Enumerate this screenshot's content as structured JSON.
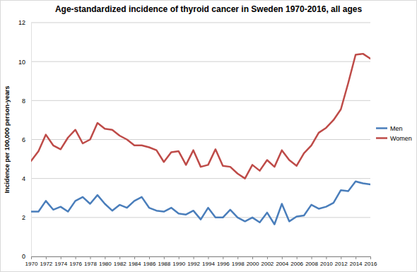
{
  "chart_data": {
    "type": "line",
    "title": "Age-standardized incidence of thyroid cancer in Sweden 1970-2016, all ages",
    "y_label": "Incidence per 100,000 person-years",
    "x": [
      1970,
      1971,
      1972,
      1973,
      1974,
      1975,
      1976,
      1977,
      1978,
      1979,
      1980,
      1981,
      1982,
      1983,
      1984,
      1985,
      1986,
      1987,
      1988,
      1989,
      1990,
      1991,
      1992,
      1993,
      1994,
      1995,
      1996,
      1997,
      1998,
      1999,
      2000,
      2001,
      2002,
      2003,
      2004,
      2005,
      2006,
      2007,
      2008,
      2009,
      2010,
      2011,
      2012,
      2013,
      2014,
      2015,
      2016
    ],
    "series": [
      {
        "name": "Men",
        "color": "#4a7ebb",
        "values": [
          2.3,
          2.3,
          2.85,
          2.4,
          2.55,
          2.3,
          2.85,
          3.05,
          2.7,
          3.15,
          2.7,
          2.35,
          2.65,
          2.5,
          2.85,
          3.05,
          2.5,
          2.35,
          2.3,
          2.5,
          2.2,
          2.15,
          2.35,
          1.9,
          2.5,
          2.0,
          2.0,
          2.4,
          2.0,
          1.8,
          2.0,
          1.75,
          2.25,
          1.65,
          2.7,
          1.8,
          2.05,
          2.1,
          2.65,
          2.45,
          2.55,
          2.75,
          3.4,
          3.35,
          3.85,
          3.75,
          3.7
        ]
      },
      {
        "name": "Women",
        "color": "#be4b48",
        "values": [
          4.9,
          5.4,
          6.25,
          5.7,
          5.5,
          6.1,
          6.5,
          5.8,
          6.0,
          6.85,
          6.55,
          6.5,
          6.2,
          6.0,
          5.7,
          5.7,
          5.6,
          5.45,
          4.85,
          5.35,
          5.4,
          4.7,
          5.45,
          4.6,
          4.7,
          5.5,
          4.65,
          4.6,
          4.25,
          4.0,
          4.7,
          4.4,
          4.95,
          4.6,
          5.45,
          4.95,
          4.65,
          5.3,
          5.7,
          6.35,
          6.6,
          7.0,
          7.55,
          8.9,
          10.35,
          10.4,
          10.15
        ]
      }
    ],
    "xlim": [
      1970,
      2016
    ],
    "xticks": [
      1970,
      1972,
      1974,
      1976,
      1978,
      1980,
      1982,
      1984,
      1986,
      1988,
      1990,
      1992,
      1994,
      1996,
      1998,
      2000,
      2002,
      2004,
      2006,
      2008,
      2010,
      2012,
      2014,
      2016
    ],
    "ylim": [
      0,
      12
    ],
    "yticks": [
      0,
      2,
      4,
      6,
      8,
      10,
      12
    ],
    "grid": true,
    "legend": "right"
  }
}
